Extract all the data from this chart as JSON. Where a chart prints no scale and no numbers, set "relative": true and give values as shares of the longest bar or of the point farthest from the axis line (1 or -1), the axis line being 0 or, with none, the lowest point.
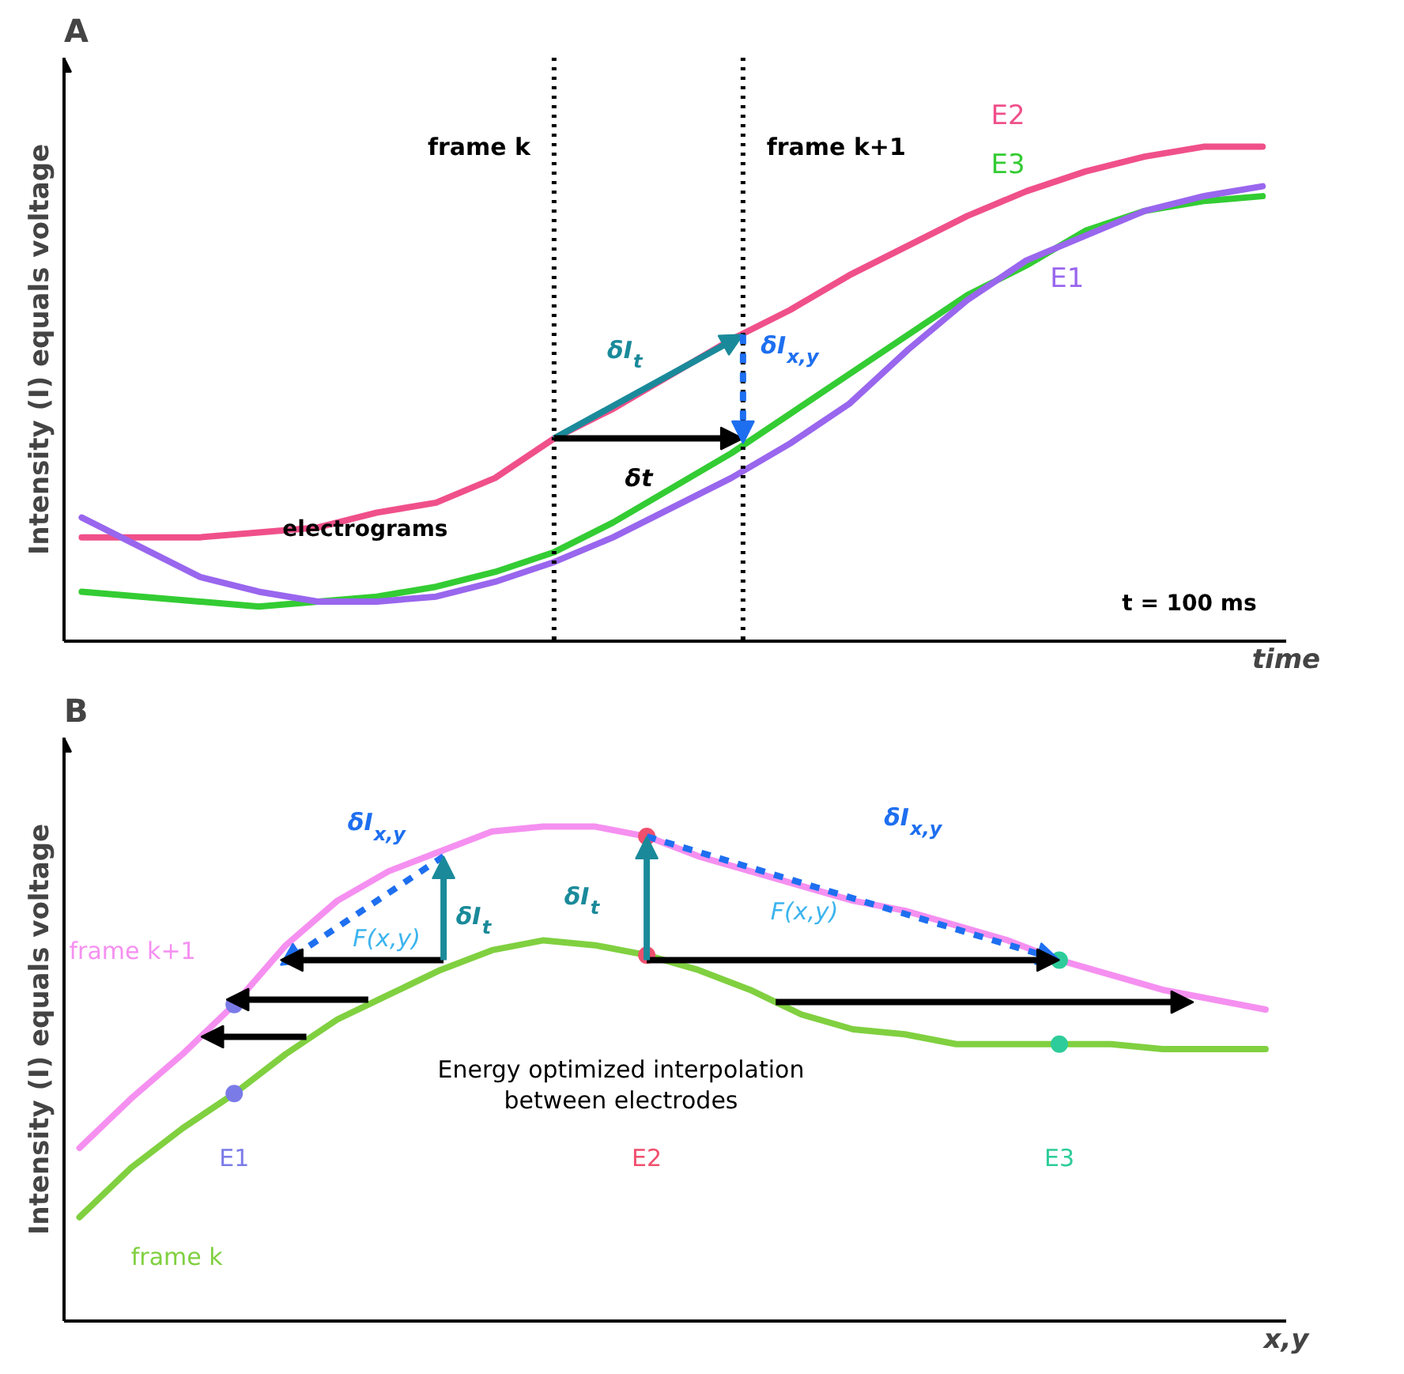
{
  "chart_data": [
    {
      "type": "line",
      "title": "A",
      "xlabel": "time",
      "ylabel": "Intensity (I) equals voltage",
      "relative": true,
      "categories": [
        null,
        null,
        null,
        null,
        null,
        null,
        null,
        null,
        null,
        null,
        null,
        null,
        null,
        null,
        null,
        null,
        null,
        null,
        null,
        null,
        null
      ],
      "series": [
        {
          "name": "E2",
          "color": "#f0508a",
          "values": [
            0.21,
            0.21,
            0.21,
            0.22,
            0.23,
            0.26,
            0.28,
            0.33,
            0.41,
            0.47,
            0.54,
            0.61,
            0.67,
            0.74,
            0.8,
            0.86,
            0.91,
            0.95,
            0.98,
            1.0,
            1.0
          ]
        },
        {
          "name": "E3",
          "color": "#33cc33",
          "values": [
            0.1,
            0.09,
            0.08,
            0.07,
            0.08,
            0.09,
            0.11,
            0.14,
            0.18,
            0.24,
            0.31,
            0.38,
            0.46,
            0.54,
            0.62,
            0.7,
            0.76,
            0.83,
            0.87,
            0.89,
            0.9
          ]
        },
        {
          "name": "E1",
          "color": "#9966ee",
          "values": [
            0.25,
            0.19,
            0.13,
            0.1,
            0.08,
            0.08,
            0.09,
            0.12,
            0.16,
            0.21,
            0.27,
            0.33,
            0.4,
            0.48,
            0.59,
            0.69,
            0.77,
            0.82,
            0.87,
            0.9,
            0.92
          ]
        }
      ],
      "annotations": [
        "δI$_{t}$",
        "δt",
        "δI$_{x,y}$",
        "electrograms",
        "t = 100 ms",
        "frame k",
        "frame k+1"
      ]
    },
    {
      "type": "line",
      "title": "B",
      "xlabel": "x,y",
      "ylabel": "Intensity (I) equals voltage",
      "relative": true,
      "categories": [
        null,
        null,
        null,
        null,
        null,
        null,
        null,
        null,
        null,
        null,
        null,
        null,
        null,
        null,
        null,
        null,
        null,
        null,
        null,
        null,
        null,
        null,
        null,
        null
      ],
      "series": [
        {
          "name": "frame k+1",
          "color": "#f590f0",
          "values": [
            0.35,
            0.45,
            0.54,
            0.64,
            0.76,
            0.85,
            0.91,
            0.95,
            0.99,
            1.0,
            1.0,
            0.98,
            0.94,
            0.91,
            0.88,
            0.85,
            0.83,
            0.8,
            0.77,
            0.73,
            0.7,
            0.67,
            0.65,
            0.63
          ]
        },
        {
          "name": "frame k",
          "color": "#80d040",
          "values": [
            0.21,
            0.31,
            0.39,
            0.46,
            0.54,
            0.61,
            0.66,
            0.71,
            0.75,
            0.77,
            0.76,
            0.74,
            0.71,
            0.67,
            0.62,
            0.59,
            0.58,
            0.56,
            0.56,
            0.56,
            0.56,
            0.55,
            0.55,
            0.55
          ]
        }
      ],
      "annotations": [
        "δI$_{x,y}$",
        "F(x,y)",
        "δI$_{t}$",
        "δI$_{t}$",
        "F(x,y)",
        "δI$_{x,y}$",
        "Energy optimized interpolation\nbetween electrodes",
        "E1",
        "E2",
        "E3"
      ]
    }
  ]
}
